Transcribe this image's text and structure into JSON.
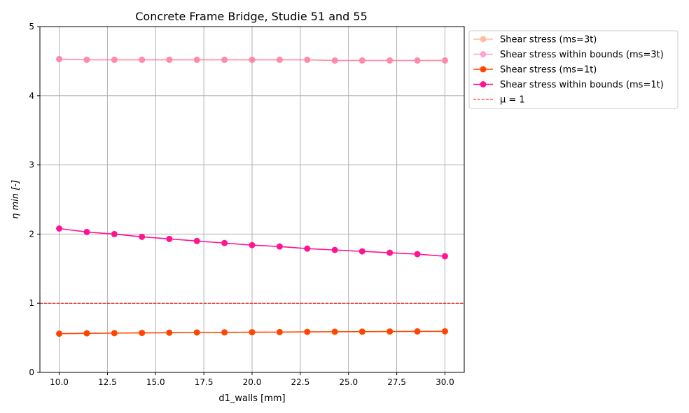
{
  "chart_data": {
    "type": "line",
    "title": "Concrete Frame Bridge, Studie 51 and 55",
    "xlabel": "d1_walls [mm]",
    "ylabel": "η min [-]",
    "xlim": [
      9.0,
      31.0
    ],
    "ylim": [
      0,
      5
    ],
    "xticks": [
      "10.0",
      "12.5",
      "15.0",
      "17.5",
      "20.0",
      "22.5",
      "25.0",
      "27.5",
      "30.0"
    ],
    "xtick_values": [
      10.0,
      12.5,
      15.0,
      17.5,
      20.0,
      22.5,
      25.0,
      27.5,
      30.0
    ],
    "yticks": [
      "0",
      "1",
      "2",
      "3",
      "4",
      "5"
    ],
    "ytick_values": [
      0,
      1,
      2,
      3,
      4,
      5
    ],
    "grid": true,
    "legend_position": "outside-right-top",
    "x": [
      10.0,
      11.43,
      12.86,
      14.29,
      15.71,
      17.14,
      18.57,
      20.0,
      21.43,
      22.86,
      24.29,
      25.71,
      27.14,
      28.57,
      30.0
    ],
    "series": [
      {
        "name": "Shear stress (ms=3t)",
        "color": "#ffa07a",
        "alpha": 0.7,
        "marker": true,
        "values": [
          4.53,
          4.52,
          4.52,
          4.52,
          4.52,
          4.52,
          4.52,
          4.52,
          4.52,
          4.52,
          4.51,
          4.51,
          4.51,
          4.51,
          4.51
        ]
      },
      {
        "name": "Shear stress within bounds (ms=3t)",
        "color": "#ff69b4",
        "alpha": 0.6,
        "marker": true,
        "values": [
          4.53,
          4.52,
          4.52,
          4.52,
          4.52,
          4.52,
          4.52,
          4.52,
          4.52,
          4.52,
          4.51,
          4.51,
          4.51,
          4.51,
          4.51
        ]
      },
      {
        "name": "Shear stress (ms=1t)",
        "color": "#ff4500",
        "alpha": 1.0,
        "marker": true,
        "values": [
          0.56,
          0.565,
          0.568,
          0.571,
          0.574,
          0.577,
          0.579,
          0.581,
          0.583,
          0.586,
          0.588,
          0.589,
          0.591,
          0.593,
          0.594
        ]
      },
      {
        "name": "Shear stress within bounds (ms=1t)",
        "color": "#ff1493",
        "alpha": 1.0,
        "marker": true,
        "values": [
          2.08,
          2.03,
          2.0,
          1.96,
          1.93,
          1.9,
          1.87,
          1.84,
          1.82,
          1.79,
          1.77,
          1.75,
          1.73,
          1.71,
          1.68
        ]
      }
    ],
    "reference_line": {
      "name": "μ = 1",
      "y": 1,
      "color": "#ff0000",
      "style": "dashed"
    }
  }
}
